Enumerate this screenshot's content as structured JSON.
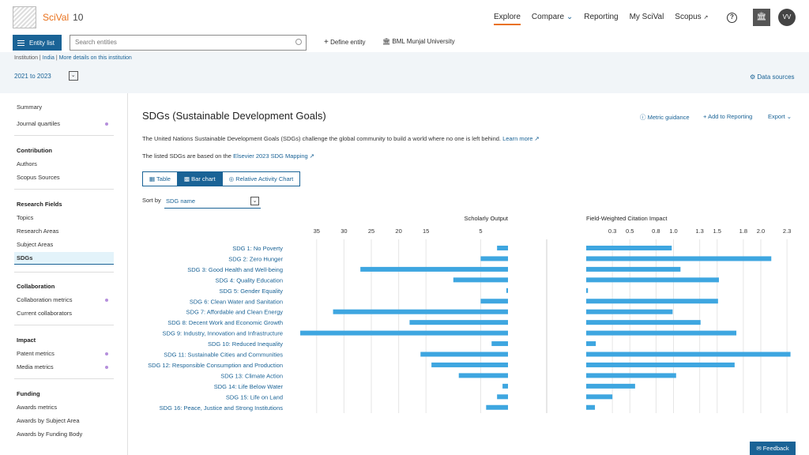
{
  "header": {
    "app_name": "SciVal",
    "version": "10",
    "nav": [
      "Explore",
      "Compare",
      "Reporting",
      "My SciVal",
      "Scopus"
    ],
    "avatar_initials": "VV"
  },
  "entity_bar": {
    "entity_list_label": "Entity list",
    "search_placeholder": "Search entities",
    "define_entity_label": "Define entity",
    "selected_entity": "BML Munjal University"
  },
  "context": {
    "crumb_type": "Institution",
    "crumb_country": "India",
    "crumb_more": "More details on this institution",
    "year_range": "2021 to 2023",
    "data_sources": "Data sources"
  },
  "sidebar": {
    "summary": "Summary",
    "journal_quartiles": "Journal quartiles",
    "contribution_head": "Contribution",
    "authors": "Authors",
    "scopus_sources": "Scopus Sources",
    "research_fields_head": "Research Fields",
    "topics": "Topics",
    "research_areas": "Research Areas",
    "subject_areas": "Subject Areas",
    "sdgs": "SDGs",
    "collaboration_head": "Collaboration",
    "collaboration_metrics": "Collaboration metrics",
    "current_collaborators": "Current collaborators",
    "impact_head": "Impact",
    "patent_metrics": "Patent metrics",
    "media_metrics": "Media metrics",
    "funding_head": "Funding",
    "awards_metrics": "Awards metrics",
    "awards_subject": "Awards by Subject Area",
    "awards_body": "Awards by Funding Body"
  },
  "main": {
    "title": "SDGs (Sustainable Development Goals)",
    "metric_guidance": "Metric guidance",
    "add_to_reporting": "Add to Reporting",
    "export": "Export",
    "intro": "The United Nations Sustainable Development Goals (SDGs) challenge the global community to build a world where no one is left behind.",
    "learn_more": "Learn more",
    "listed_prefix": "The listed SDGs are based on the",
    "listed_link": "Elsevier 2023 SDG Mapping",
    "tabs": [
      "Table",
      "Bar chart",
      "Relative Activity Chart"
    ],
    "sort_label": "Sort by",
    "sort_value": "SDG name",
    "feedback": "Feedback"
  },
  "colors": {
    "accent": "#1a6396",
    "bar": "#3ea6e0",
    "brand": "#e9711c"
  },
  "chart_data": {
    "type": "bar",
    "categories": [
      "SDG 1: No Poverty",
      "SDG 2: Zero Hunger",
      "SDG 3: Good Health and Well-being",
      "SDG 4: Quality Education",
      "SDG 5: Gender Equality",
      "SDG 6: Clean Water and Sanitation",
      "SDG 7: Affordable and Clean Energy",
      "SDG 8: Decent Work and Economic Growth",
      "SDG 9: Industry, Innovation and Infrastructure",
      "SDG 10: Reduced Inequality",
      "SDG 11: Sustainable Cities and Communities",
      "SDG 12: Responsible Consumption and Production",
      "SDG 13: Climate Action",
      "SDG 14: Life Below Water",
      "SDG 15: Life on Land",
      "SDG 16: Peace, Justice and Strong Institutions"
    ],
    "series": [
      {
        "name": "Scholarly Output",
        "values": [
          2,
          5,
          27,
          10,
          0.3,
          5,
          32,
          18,
          38,
          3,
          16,
          14,
          9,
          1,
          2,
          4
        ],
        "ticks": [
          35,
          30,
          25,
          20,
          15,
          5
        ]
      },
      {
        "name": "Field-Weighted Citation Impact",
        "values": [
          0.98,
          2.12,
          1.08,
          1.52,
          0.02,
          1.51,
          0.99,
          1.31,
          1.72,
          0.11,
          2.34,
          1.7,
          1.03,
          0.56,
          0.3,
          0.1
        ],
        "ticks": [
          0.3,
          0.5,
          0.8,
          1.0,
          1.3,
          1.5,
          1.8,
          2.0,
          2.3
        ]
      }
    ]
  }
}
